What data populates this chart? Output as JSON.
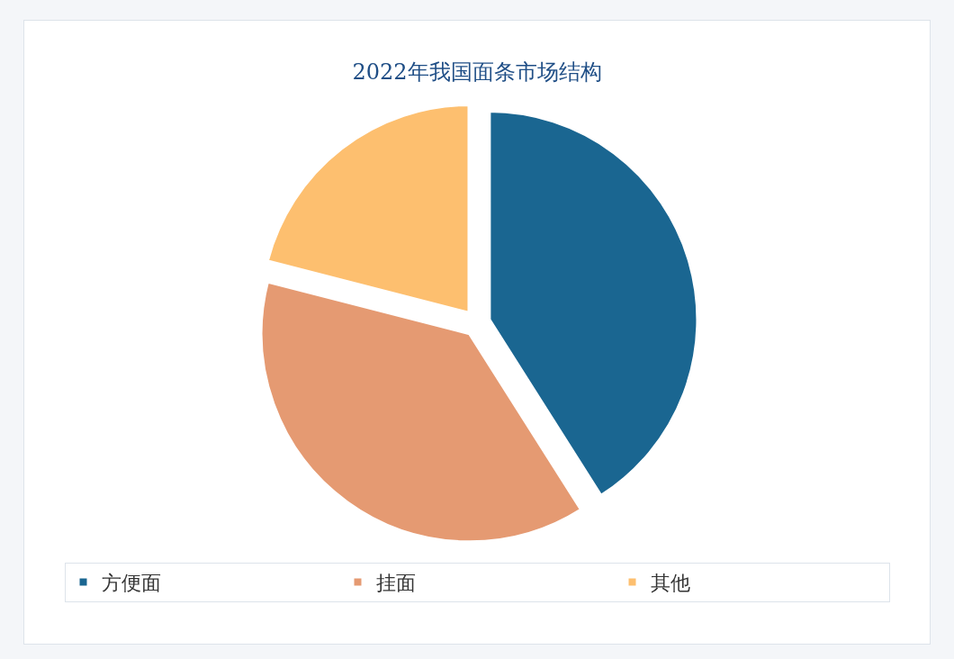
{
  "chart_data": {
    "type": "pie",
    "title": "2022年我国面条市场结构",
    "categories": [
      "方便面",
      "挂面",
      "其他"
    ],
    "values": [
      41,
      38,
      21
    ],
    "colors": [
      "#1a6691",
      "#e59a72",
      "#fdbf6f"
    ],
    "legend": "bottom"
  }
}
